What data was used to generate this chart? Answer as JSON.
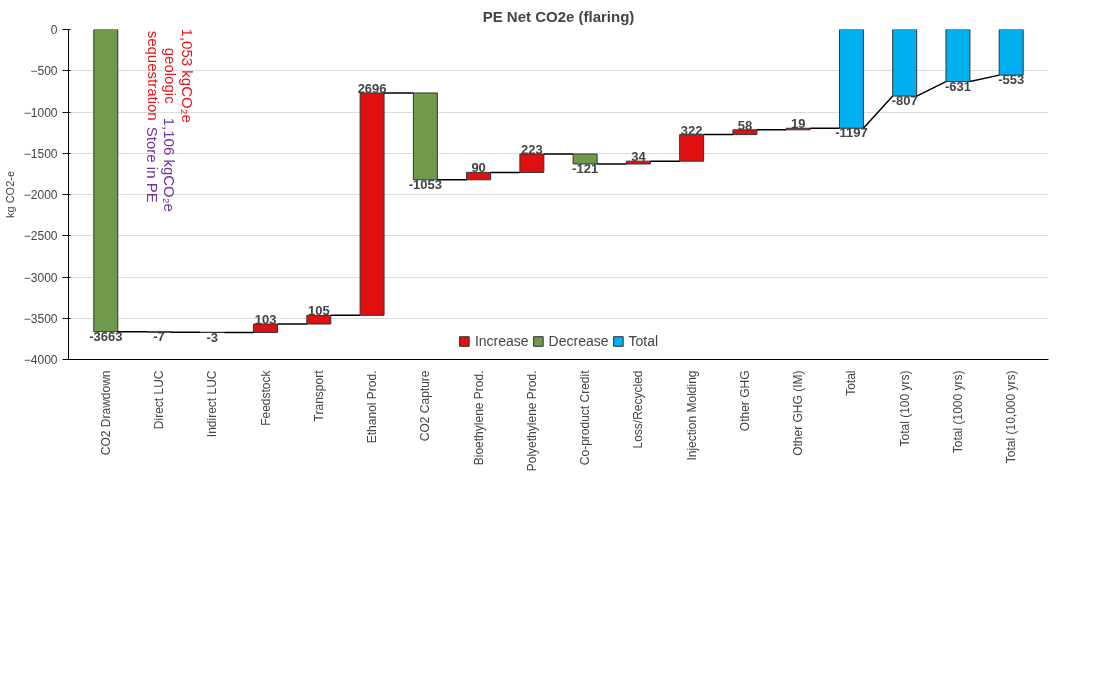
{
  "chart_data": {
    "type": "bar",
    "title": "PE Net CO2e (flaring)",
    "ylabel": "kg CO2-e",
    "categories": [
      "CO2 Drawdown",
      "Direct LUC",
      "Indirect LUC",
      "Feedstock",
      "Transport",
      "Ethanol Prod.",
      "CO2 Capture",
      "Bioethylene Prod.",
      "Polyethylene Prod.",
      "Co-product Credit",
      "Loss/Recycled",
      "Injection Molding",
      "Other GHG",
      "Other GHG (IM)",
      "Total",
      "Total (100 yrs)",
      "Total (1000 yrs)",
      "Total (10,000 yrs)"
    ],
    "series": [
      {
        "name": "Increase",
        "color": "#e01010",
        "values": [
          null,
          null,
          null,
          103,
          105,
          2696,
          null,
          90,
          223,
          null,
          34,
          322,
          58,
          19,
          null,
          null,
          null,
          null
        ],
        "base": [
          null,
          null,
          null,
          -3673,
          -3570,
          -3465,
          null,
          -1822,
          -1732,
          null,
          -1630,
          -1596,
          -1274,
          -1216,
          null,
          null,
          null,
          null
        ]
      },
      {
        "name": "Decrease",
        "color": "#6f9a4c",
        "values": [
          -3663,
          -7,
          -3,
          null,
          null,
          null,
          -1053,
          null,
          null,
          -121,
          null,
          null,
          null,
          null,
          null,
          null,
          null,
          null
        ],
        "base": [
          0,
          -3663,
          -3670,
          null,
          null,
          null,
          -769,
          null,
          null,
          -1509,
          null,
          null,
          null,
          null,
          null,
          null,
          null,
          null
        ]
      },
      {
        "name": "Total",
        "color": "#00b0f0",
        "values": [
          null,
          null,
          null,
          null,
          null,
          null,
          null,
          null,
          null,
          null,
          null,
          null,
          null,
          null,
          -1197,
          -807,
          -631,
          -553
        ]
      }
    ],
    "ylim": [
      -4000,
      0
    ],
    "yticks": [
      -4000,
      -3500,
      -3000,
      -2500,
      -2000,
      -1500,
      -1000,
      -500,
      0
    ],
    "grid": "y",
    "legend": "bottom",
    "data_labels": true,
    "annotations": [
      "1,053 kgCO₂e\ngeologic\nsequestration",
      "1,106 kgCO₂e\nStore in PE"
    ]
  }
}
